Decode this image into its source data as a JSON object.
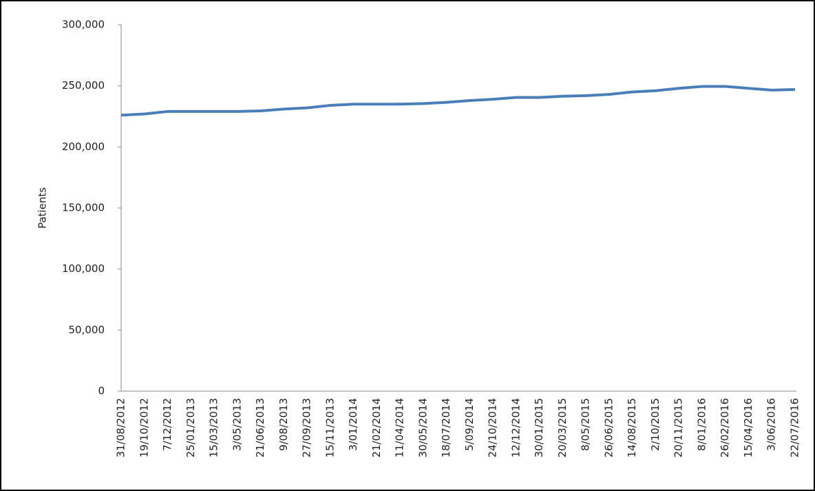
{
  "chart_data": {
    "type": "line",
    "y_label": "Patients",
    "categories": [
      "31/08/2012",
      "19/10/2012",
      "7/12/2012",
      "25/01/2013",
      "15/03/2013",
      "3/05/2013",
      "21/06/2013",
      "9/08/2013",
      "27/09/2013",
      "15/11/2013",
      "3/01/2014",
      "21/02/2014",
      "11/04/2014",
      "30/05/2014",
      "18/07/2014",
      "5/09/2014",
      "24/10/2014",
      "12/12/2014",
      "30/01/2015",
      "20/03/2015",
      "8/05/2015",
      "26/06/2015",
      "14/08/2015",
      "2/10/2015",
      "20/11/2015",
      "8/01/2016",
      "26/02/2016",
      "15/04/2016",
      "3/06/2016",
      "22/07/2016"
    ],
    "series": [
      {
        "name": "Patients",
        "color": "#4a7ebb",
        "values": [
          226000,
          227000,
          229000,
          229000,
          229000,
          229000,
          229500,
          231000,
          232000,
          234000,
          235000,
          235000,
          235000,
          235500,
          236500,
          238000,
          239000,
          240500,
          240500,
          241500,
          242000,
          243000,
          245000,
          246000,
          248000,
          249500,
          249500,
          248000,
          246500,
          247000
        ]
      }
    ],
    "ylim": [
      0,
      300000
    ],
    "yticks": [
      0,
      {
        "value": 50000,
        "label": "50,000"
      },
      {
        "value": 100000,
        "label": "100,000"
      },
      {
        "value": 150000,
        "label": "150,000"
      },
      {
        "value": 200000,
        "label": "200,000"
      },
      {
        "value": 250000,
        "label": "250,000"
      },
      {
        "value": 300000,
        "label": "300,000"
      }
    ],
    "grid": false
  }
}
